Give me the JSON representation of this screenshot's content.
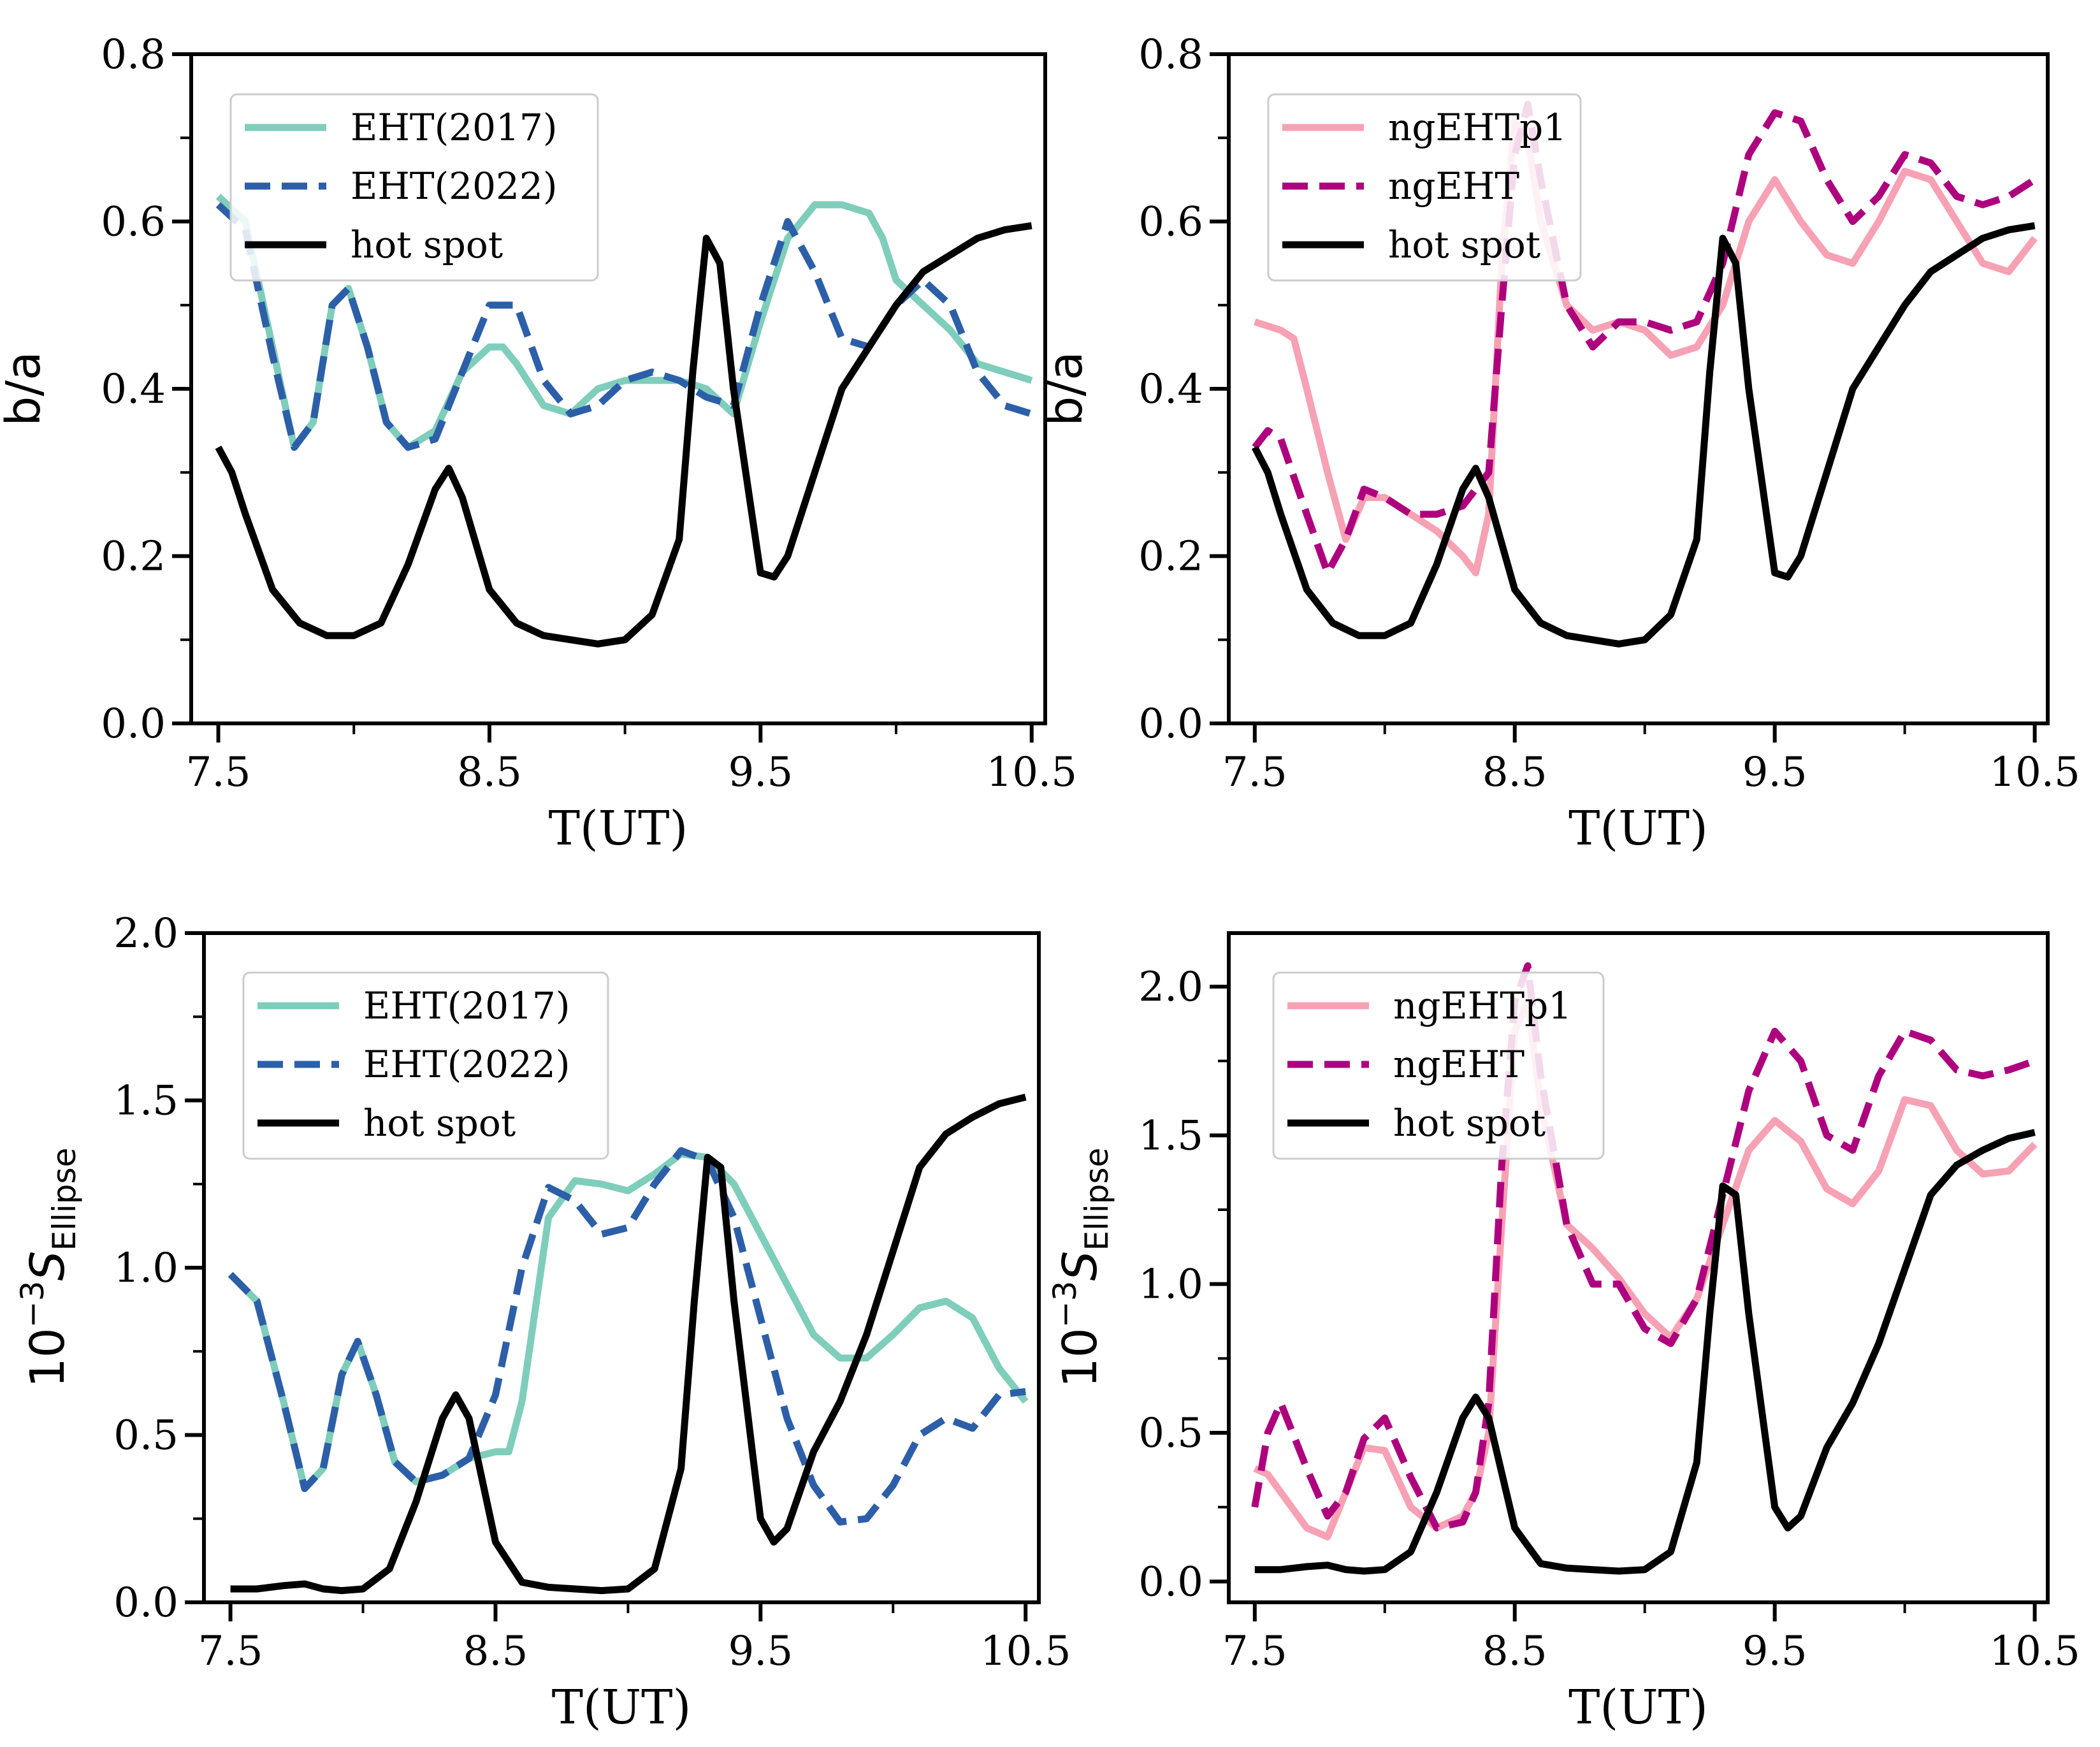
{
  "chart_data": [
    {
      "type": "line",
      "xlabel": "T(UT)",
      "ylabel": "b/a",
      "xlim": [
        7.4,
        10.55
      ],
      "ylim": [
        0.0,
        0.8
      ],
      "xticks": [
        "7.5",
        "8.5",
        "9.5",
        "10.5"
      ],
      "yticks": [
        "0.0",
        "0.2",
        "0.4",
        "0.6",
        "0.8"
      ],
      "legend": "top-left",
      "series": [
        {
          "name": "EHT(2017)",
          "color": "#7fcdbb",
          "dash": "solid",
          "x": [
            7.5,
            7.6,
            7.7,
            7.78,
            7.85,
            7.92,
            7.98,
            8.05,
            8.12,
            8.2,
            8.3,
            8.4,
            8.5,
            8.55,
            8.6,
            8.7,
            8.8,
            8.9,
            9.0,
            9.1,
            9.2,
            9.3,
            9.4,
            9.5,
            9.6,
            9.7,
            9.8,
            9.9,
            9.95,
            10.0,
            10.1,
            10.2,
            10.3,
            10.4,
            10.5
          ],
          "y": [
            0.63,
            0.6,
            0.45,
            0.33,
            0.36,
            0.5,
            0.52,
            0.45,
            0.36,
            0.33,
            0.35,
            0.42,
            0.45,
            0.45,
            0.43,
            0.38,
            0.37,
            0.4,
            0.41,
            0.41,
            0.41,
            0.4,
            0.37,
            0.48,
            0.58,
            0.62,
            0.62,
            0.61,
            0.58,
            0.53,
            0.5,
            0.47,
            0.43,
            0.42,
            0.41
          ]
        },
        {
          "name": "EHT(2022)",
          "color": "#2c5fa8",
          "dash": "dashed",
          "x": [
            7.5,
            7.6,
            7.7,
            7.78,
            7.85,
            7.92,
            7.98,
            8.05,
            8.12,
            8.2,
            8.3,
            8.4,
            8.5,
            8.6,
            8.7,
            8.8,
            8.9,
            9.0,
            9.1,
            9.2,
            9.3,
            9.4,
            9.5,
            9.6,
            9.7,
            9.8,
            9.9,
            10.0,
            10.1,
            10.2,
            10.3,
            10.4,
            10.5
          ],
          "y": [
            0.62,
            0.59,
            0.44,
            0.33,
            0.36,
            0.5,
            0.52,
            0.45,
            0.36,
            0.33,
            0.34,
            0.42,
            0.5,
            0.5,
            0.41,
            0.37,
            0.38,
            0.41,
            0.42,
            0.41,
            0.39,
            0.38,
            0.5,
            0.6,
            0.54,
            0.46,
            0.45,
            0.5,
            0.53,
            0.5,
            0.42,
            0.38,
            0.37
          ]
        },
        {
          "name": "hot spot",
          "color": "#000000",
          "dash": "solid",
          "x": [
            7.5,
            7.55,
            7.6,
            7.7,
            7.8,
            7.9,
            8.0,
            8.1,
            8.2,
            8.3,
            8.35,
            8.4,
            8.5,
            8.6,
            8.7,
            8.8,
            8.9,
            9.0,
            9.1,
            9.2,
            9.25,
            9.3,
            9.35,
            9.4,
            9.5,
            9.55,
            9.6,
            9.7,
            9.8,
            9.9,
            10.0,
            10.1,
            10.2,
            10.3,
            10.4,
            10.5
          ],
          "y": [
            0.33,
            0.3,
            0.25,
            0.16,
            0.12,
            0.105,
            0.105,
            0.12,
            0.19,
            0.28,
            0.305,
            0.27,
            0.16,
            0.12,
            0.105,
            0.1,
            0.095,
            0.1,
            0.13,
            0.22,
            0.42,
            0.58,
            0.55,
            0.4,
            0.18,
            0.175,
            0.2,
            0.3,
            0.4,
            0.45,
            0.5,
            0.54,
            0.56,
            0.58,
            0.59,
            0.595
          ]
        }
      ]
    },
    {
      "type": "line",
      "xlabel": "T(UT)",
      "ylabel": "b/a",
      "xlim": [
        7.4,
        10.55
      ],
      "ylim": [
        0.0,
        0.8
      ],
      "xticks": [
        "7.5",
        "8.5",
        "9.5",
        "10.5"
      ],
      "yticks": [
        "0.0",
        "0.2",
        "0.4",
        "0.6",
        "0.8"
      ],
      "legend": "top-left",
      "series": [
        {
          "name": "ngEHTp1",
          "color": "#f7a1b4",
          "dash": "solid",
          "x": [
            7.5,
            7.6,
            7.65,
            7.7,
            7.78,
            7.85,
            7.92,
            8.0,
            8.1,
            8.2,
            8.3,
            8.35,
            8.4,
            8.45,
            8.5,
            8.55,
            8.6,
            8.7,
            8.8,
            8.9,
            9.0,
            9.1,
            9.2,
            9.3,
            9.4,
            9.5,
            9.6,
            9.7,
            9.8,
            9.9,
            10.0,
            10.1,
            10.2,
            10.3,
            10.4,
            10.5
          ],
          "y": [
            0.48,
            0.47,
            0.46,
            0.4,
            0.3,
            0.22,
            0.27,
            0.27,
            0.25,
            0.23,
            0.2,
            0.18,
            0.25,
            0.55,
            0.72,
            0.7,
            0.6,
            0.5,
            0.47,
            0.48,
            0.47,
            0.44,
            0.45,
            0.5,
            0.6,
            0.65,
            0.6,
            0.56,
            0.55,
            0.6,
            0.66,
            0.65,
            0.6,
            0.55,
            0.54,
            0.58
          ]
        },
        {
          "name": "ngEHT",
          "color": "#ae017e",
          "dash": "dashed",
          "x": [
            7.5,
            7.55,
            7.6,
            7.7,
            7.78,
            7.85,
            7.92,
            8.0,
            8.1,
            8.2,
            8.3,
            8.35,
            8.4,
            8.45,
            8.5,
            8.55,
            8.6,
            8.7,
            8.8,
            8.9,
            9.0,
            9.1,
            9.2,
            9.3,
            9.4,
            9.5,
            9.6,
            9.7,
            9.8,
            9.9,
            10.0,
            10.1,
            10.2,
            10.3,
            10.4,
            10.5
          ],
          "y": [
            0.33,
            0.35,
            0.34,
            0.25,
            0.18,
            0.22,
            0.28,
            0.27,
            0.25,
            0.25,
            0.26,
            0.28,
            0.3,
            0.5,
            0.68,
            0.74,
            0.65,
            0.5,
            0.45,
            0.48,
            0.48,
            0.47,
            0.48,
            0.55,
            0.68,
            0.73,
            0.72,
            0.65,
            0.6,
            0.63,
            0.68,
            0.67,
            0.63,
            0.62,
            0.63,
            0.65
          ]
        },
        {
          "name": "hot spot",
          "color": "#000000",
          "dash": "solid",
          "x": [
            7.5,
            7.55,
            7.6,
            7.7,
            7.8,
            7.9,
            8.0,
            8.1,
            8.2,
            8.3,
            8.35,
            8.4,
            8.5,
            8.6,
            8.7,
            8.8,
            8.9,
            9.0,
            9.1,
            9.2,
            9.25,
            9.3,
            9.35,
            9.4,
            9.5,
            9.55,
            9.6,
            9.7,
            9.8,
            9.9,
            10.0,
            10.1,
            10.2,
            10.3,
            10.4,
            10.5
          ],
          "y": [
            0.33,
            0.3,
            0.25,
            0.16,
            0.12,
            0.105,
            0.105,
            0.12,
            0.19,
            0.28,
            0.305,
            0.27,
            0.16,
            0.12,
            0.105,
            0.1,
            0.095,
            0.1,
            0.13,
            0.22,
            0.42,
            0.58,
            0.55,
            0.4,
            0.18,
            0.175,
            0.2,
            0.3,
            0.4,
            0.45,
            0.5,
            0.54,
            0.56,
            0.58,
            0.59,
            0.595
          ]
        }
      ]
    },
    {
      "type": "line",
      "xlabel": "T(UT)",
      "ylabel": "10",
      "ylabel_sup": "−3",
      "ylabel_main": "S",
      "ylabel_sub": "Ellipse",
      "xlim": [
        7.4,
        10.55
      ],
      "ylim": [
        0.0,
        2.0
      ],
      "xticks": [
        "7.5",
        "8.5",
        "9.5",
        "10.5"
      ],
      "yticks": [
        "0.0",
        "0.5",
        "1.0",
        "1.5",
        "2.0"
      ],
      "legend": "top-left",
      "series": [
        {
          "name": "EHT(2017)",
          "color": "#7fcdbb",
          "dash": "solid",
          "x": [
            7.5,
            7.6,
            7.7,
            7.78,
            7.85,
            7.92,
            7.98,
            8.05,
            8.12,
            8.2,
            8.3,
            8.4,
            8.5,
            8.55,
            8.6,
            8.7,
            8.8,
            8.9,
            9.0,
            9.1,
            9.2,
            9.3,
            9.4,
            9.5,
            9.6,
            9.7,
            9.8,
            9.9,
            10.0,
            10.1,
            10.2,
            10.3,
            10.4,
            10.5
          ],
          "y": [
            0.98,
            0.9,
            0.6,
            0.34,
            0.4,
            0.68,
            0.78,
            0.62,
            0.42,
            0.36,
            0.38,
            0.43,
            0.45,
            0.45,
            0.6,
            1.15,
            1.26,
            1.25,
            1.23,
            1.28,
            1.34,
            1.33,
            1.25,
            1.1,
            0.95,
            0.8,
            0.73,
            0.73,
            0.8,
            0.88,
            0.9,
            0.85,
            0.7,
            0.6
          ]
        },
        {
          "name": "EHT(2022)",
          "color": "#2c5fa8",
          "dash": "dashed",
          "x": [
            7.5,
            7.6,
            7.7,
            7.78,
            7.85,
            7.92,
            7.98,
            8.05,
            8.12,
            8.2,
            8.3,
            8.4,
            8.5,
            8.6,
            8.7,
            8.8,
            8.9,
            9.0,
            9.1,
            9.2,
            9.3,
            9.4,
            9.5,
            9.6,
            9.7,
            9.8,
            9.9,
            10.0,
            10.1,
            10.2,
            10.3,
            10.4,
            10.5
          ],
          "y": [
            0.98,
            0.9,
            0.6,
            0.34,
            0.4,
            0.68,
            0.78,
            0.62,
            0.42,
            0.36,
            0.38,
            0.43,
            0.62,
            1.0,
            1.24,
            1.2,
            1.1,
            1.12,
            1.25,
            1.35,
            1.32,
            1.15,
            0.85,
            0.55,
            0.35,
            0.24,
            0.25,
            0.35,
            0.5,
            0.55,
            0.52,
            0.62,
            0.63
          ]
        },
        {
          "name": "hot spot",
          "color": "#000000",
          "dash": "solid",
          "x": [
            7.5,
            7.6,
            7.7,
            7.78,
            7.85,
            7.92,
            8.0,
            8.1,
            8.2,
            8.3,
            8.35,
            8.4,
            8.5,
            8.6,
            8.7,
            8.8,
            8.9,
            9.0,
            9.1,
            9.2,
            9.25,
            9.3,
            9.35,
            9.4,
            9.5,
            9.55,
            9.6,
            9.7,
            9.8,
            9.9,
            10.0,
            10.1,
            10.2,
            10.3,
            10.4,
            10.5
          ],
          "y": [
            0.04,
            0.04,
            0.05,
            0.055,
            0.04,
            0.035,
            0.04,
            0.1,
            0.3,
            0.55,
            0.62,
            0.55,
            0.18,
            0.06,
            0.045,
            0.04,
            0.035,
            0.04,
            0.1,
            0.4,
            0.9,
            1.33,
            1.3,
            0.9,
            0.25,
            0.18,
            0.22,
            0.45,
            0.6,
            0.8,
            1.05,
            1.3,
            1.4,
            1.45,
            1.49,
            1.51
          ]
        }
      ]
    },
    {
      "type": "line",
      "xlabel": "T(UT)",
      "ylabel": "10",
      "ylabel_sup": "−3",
      "ylabel_main": "S",
      "ylabel_sub": "Ellipse",
      "xlim": [
        7.4,
        10.55
      ],
      "ylim": [
        -0.07,
        2.18
      ],
      "xticks": [
        "7.5",
        "8.5",
        "9.5",
        "10.5"
      ],
      "yticks": [
        "0.0",
        "0.5",
        "1.0",
        "1.5",
        "2.0"
      ],
      "legend": "top-left",
      "series": [
        {
          "name": "ngEHTp1",
          "color": "#f7a1b4",
          "dash": "solid",
          "x": [
            7.5,
            7.55,
            7.6,
            7.7,
            7.78,
            7.85,
            7.92,
            8.0,
            8.1,
            8.2,
            8.3,
            8.35,
            8.4,
            8.45,
            8.5,
            8.55,
            8.6,
            8.7,
            8.8,
            8.9,
            9.0,
            9.1,
            9.2,
            9.3,
            9.4,
            9.5,
            9.6,
            9.7,
            9.8,
            9.9,
            10.0,
            10.1,
            10.2,
            10.3,
            10.4,
            10.5
          ],
          "y": [
            0.38,
            0.36,
            0.3,
            0.18,
            0.15,
            0.3,
            0.45,
            0.44,
            0.25,
            0.18,
            0.22,
            0.3,
            0.5,
            1.2,
            1.85,
            1.95,
            1.6,
            1.2,
            1.12,
            1.02,
            0.9,
            0.82,
            0.95,
            1.2,
            1.45,
            1.55,
            1.48,
            1.32,
            1.27,
            1.38,
            1.62,
            1.6,
            1.45,
            1.37,
            1.38,
            1.47
          ]
        },
        {
          "name": "ngEHT",
          "color": "#ae017e",
          "dash": "dashed",
          "x": [
            7.5,
            7.55,
            7.6,
            7.7,
            7.78,
            7.85,
            7.92,
            8.0,
            8.1,
            8.2,
            8.3,
            8.35,
            8.4,
            8.45,
            8.5,
            8.55,
            8.6,
            8.7,
            8.8,
            8.9,
            9.0,
            9.1,
            9.2,
            9.3,
            9.4,
            9.5,
            9.6,
            9.7,
            9.8,
            9.9,
            10.0,
            10.1,
            10.2,
            10.3,
            10.4,
            10.5
          ],
          "y": [
            0.25,
            0.5,
            0.6,
            0.38,
            0.22,
            0.3,
            0.48,
            0.55,
            0.35,
            0.18,
            0.2,
            0.3,
            0.6,
            1.4,
            1.95,
            2.07,
            1.7,
            1.2,
            1.0,
            1.0,
            0.85,
            0.8,
            0.95,
            1.3,
            1.65,
            1.85,
            1.75,
            1.5,
            1.45,
            1.7,
            1.85,
            1.82,
            1.72,
            1.7,
            1.72,
            1.75
          ]
        },
        {
          "name": "hot spot",
          "color": "#000000",
          "dash": "solid",
          "x": [
            7.5,
            7.6,
            7.7,
            7.78,
            7.85,
            7.92,
            8.0,
            8.1,
            8.2,
            8.3,
            8.35,
            8.4,
            8.5,
            8.6,
            8.7,
            8.8,
            8.9,
            9.0,
            9.1,
            9.2,
            9.25,
            9.3,
            9.35,
            9.4,
            9.5,
            9.55,
            9.6,
            9.7,
            9.8,
            9.9,
            10.0,
            10.1,
            10.2,
            10.3,
            10.4,
            10.5
          ],
          "y": [
            0.04,
            0.04,
            0.05,
            0.055,
            0.04,
            0.035,
            0.04,
            0.1,
            0.3,
            0.55,
            0.62,
            0.55,
            0.18,
            0.06,
            0.045,
            0.04,
            0.035,
            0.04,
            0.1,
            0.4,
            0.9,
            1.33,
            1.3,
            0.9,
            0.25,
            0.18,
            0.22,
            0.45,
            0.6,
            0.8,
            1.05,
            1.3,
            1.4,
            1.45,
            1.49,
            1.51
          ]
        }
      ]
    }
  ]
}
